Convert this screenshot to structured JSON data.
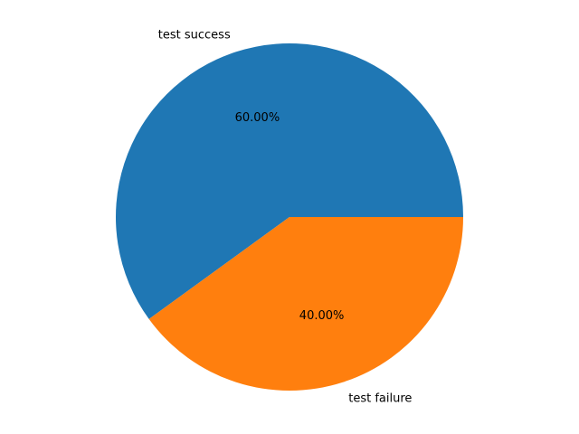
{
  "chart_data": {
    "type": "pie",
    "slices": [
      {
        "label": "test success",
        "value": 60.0,
        "percent_label": "60.00%",
        "color": "#1f77b4"
      },
      {
        "label": "test failure",
        "value": 40.0,
        "percent_label": "40.00%",
        "color": "#ff7f0e"
      }
    ],
    "start_angle_deg": 0,
    "direction": "counterclockwise",
    "legend": "none"
  }
}
